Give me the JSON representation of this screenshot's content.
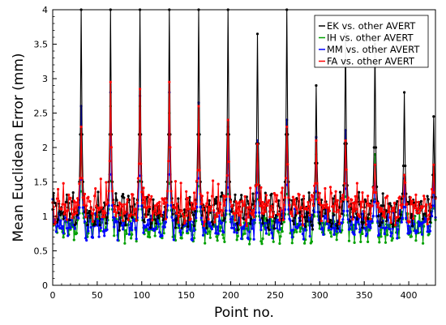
{
  "chart_data": {
    "type": "line",
    "title": "",
    "xlabel": "Point no.",
    "ylabel": "Mean Euclidean Error (mm)",
    "xlim": [
      0,
      430
    ],
    "ylim": [
      0,
      4
    ],
    "xticks": [
      0,
      50,
      100,
      150,
      200,
      250,
      300,
      350,
      400
    ],
    "yticks": [
      0,
      0.5,
      1,
      1.5,
      2,
      2.5,
      3,
      3.5,
      4
    ],
    "xtick_labels": [
      "0",
      "50",
      "100",
      "150",
      "200",
      "250",
      "300",
      "350",
      "400"
    ],
    "ytick_labels": [
      "0",
      "0.5",
      "1",
      "1.5",
      "2",
      "2.5",
      "3",
      "3.5",
      "4"
    ],
    "grid": false,
    "legend_position": "top-right",
    "peaks": [
      {
        "x": 32,
        "EK": 4.0,
        "IH": 2.2,
        "MM": 2.6,
        "FA": 2.3
      },
      {
        "x": 65,
        "EK": 4.0,
        "IH": 2.6,
        "MM": 2.8,
        "FA": 2.95
      },
      {
        "x": 98,
        "EK": 4.0,
        "IH": 2.6,
        "MM": 2.75,
        "FA": 2.85
      },
      {
        "x": 131,
        "EK": 4.0,
        "IH": 2.5,
        "MM": 2.8,
        "FA": 2.95
      },
      {
        "x": 164,
        "EK": 4.0,
        "IH": 2.4,
        "MM": 2.65,
        "FA": 2.6
      },
      {
        "x": 197,
        "EK": 4.0,
        "IH": 2.1,
        "MM": 2.3,
        "FA": 2.4
      },
      {
        "x": 230,
        "EK": 3.65,
        "IH": 1.9,
        "MM": 2.1,
        "FA": 2.05
      },
      {
        "x": 263,
        "EK": 4.0,
        "IH": 2.1,
        "MM": 2.4,
        "FA": 2.3
      },
      {
        "x": 296,
        "EK": 2.9,
        "IH": 1.9,
        "MM": 2.15,
        "FA": 2.1
      },
      {
        "x": 329,
        "EK": 3.65,
        "IH": 2.0,
        "MM": 2.25,
        "FA": 2.1
      },
      {
        "x": 362,
        "EK": 3.5,
        "IH": 1.9,
        "MM": 1.75,
        "FA": 1.75
      },
      {
        "x": 395,
        "EK": 2.8,
        "IH": 1.6,
        "MM": 1.55,
        "FA": 1.6
      },
      {
        "x": 428,
        "EK": 2.45,
        "IH": 1.55,
        "MM": 1.6,
        "FA": 1.75
      }
    ],
    "series": [
      {
        "name": "EK vs. other AVERT",
        "key": "EK",
        "color": "#000000",
        "base": 1.08,
        "amp": 0.22
      },
      {
        "name": "IH vs. other AVERT",
        "key": "IH",
        "color": "#00a000",
        "base": 0.85,
        "amp": 0.2
      },
      {
        "name": "MM vs. other AVERT",
        "key": "MM",
        "color": "#0000ff",
        "base": 0.88,
        "amp": 0.18
      },
      {
        "name": "FA vs. other AVERT",
        "key": "FA",
        "color": "#ff0000",
        "base": 1.1,
        "amp": 0.2
      }
    ]
  }
}
